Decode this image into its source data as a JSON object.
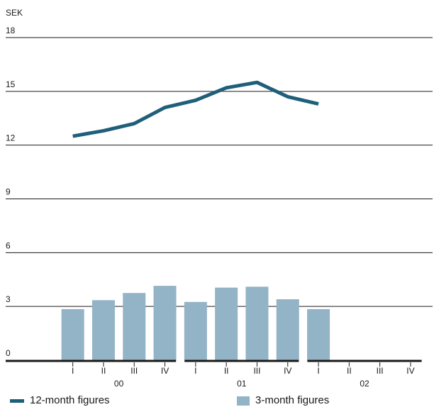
{
  "chart_data": {
    "type": "bar",
    "unit_label": "SEK",
    "ylim": [
      0,
      18
    ],
    "yticks": [
      0,
      3,
      6,
      9,
      12,
      15,
      18
    ],
    "quarters": [
      "I",
      "II",
      "III",
      "IV",
      "I",
      "II",
      "III",
      "IV",
      "I",
      "II",
      "III",
      "IV"
    ],
    "years": [
      "00",
      "01",
      "02"
    ],
    "series": [
      {
        "name": "12-month figures",
        "kind": "line",
        "color": "#1f5f7a",
        "values": [
          12.5,
          12.8,
          13.2,
          14.1,
          14.5,
          15.2,
          15.5,
          14.7,
          14.3,
          null,
          null,
          null
        ]
      },
      {
        "name": "3-month figures",
        "kind": "bar",
        "color": "#93b3c6",
        "values": [
          2.85,
          3.35,
          3.75,
          4.15,
          3.25,
          4.05,
          4.1,
          3.4,
          2.85,
          null,
          null,
          null
        ]
      }
    ],
    "grid": true,
    "legend_position": "bottom"
  },
  "legend": {
    "line_label": "12-month figures",
    "bar_label": "3-month figures"
  }
}
